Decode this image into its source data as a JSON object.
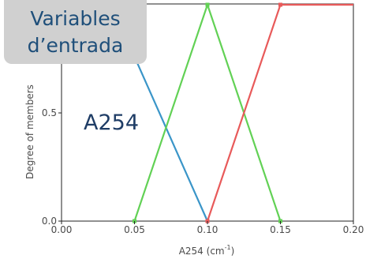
{
  "callout": {
    "line1": "Variables",
    "line2": "d’entrada"
  },
  "chart_data": {
    "type": "line",
    "xlabel": "A254 (cm",
    "xlabel_sup": "-1",
    "xlabel_close": ")",
    "ylabel": "Degree of members",
    "inline_label": "A254",
    "xlim": [
      0.0,
      0.2
    ],
    "ylim": [
      0.0,
      1.0
    ],
    "x_ticks": [
      0.0,
      0.05,
      0.1,
      0.15,
      0.2
    ],
    "x_tick_labels": [
      "0.00",
      "0.05",
      "0.10",
      "0.15",
      "0.20"
    ],
    "y_ticks": [
      0.0,
      0.5
    ],
    "y_tick_labels": [
      "0.0",
      "0.5"
    ],
    "grid": false,
    "series": [
      {
        "color": "#3a95c8",
        "x": [
          0.05,
          0.1
        ],
        "y": [
          0.76,
          0.0
        ],
        "marker_indices": [
          1
        ]
      },
      {
        "color": "#62d155",
        "x": [
          0.05,
          0.1,
          0.15
        ],
        "y": [
          0.0,
          1.0,
          0.0
        ],
        "marker_indices": [
          0,
          1,
          2
        ]
      },
      {
        "color": "#e85a5a",
        "x": [
          0.1,
          0.15,
          0.2
        ],
        "y": [
          0.0,
          1.0,
          1.0
        ],
        "marker_indices": [
          0,
          1
        ]
      }
    ]
  }
}
